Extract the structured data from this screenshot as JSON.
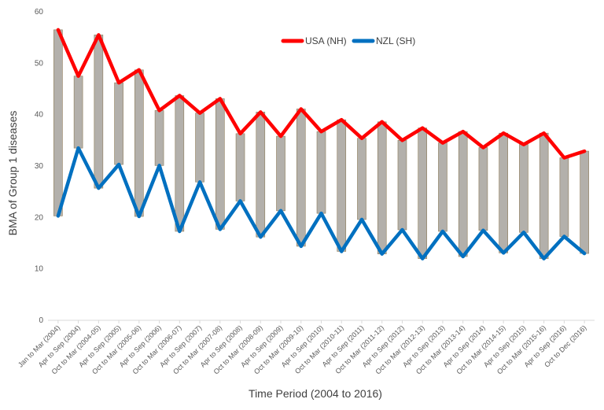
{
  "chart_data": {
    "type": "line",
    "title": "",
    "xlabel": "Time Period  (2004 to 2016)",
    "ylabel": "BMA of Group 1 diseases",
    "ylim": [
      0,
      60
    ],
    "yticks": [
      0,
      10,
      20,
      30,
      40,
      50,
      60
    ],
    "grid": false,
    "legend_position": "top-right",
    "categories": [
      "Jan to Mar (2004)",
      "Apr to Sep (2004)",
      "Oct to Mar (2004-05)",
      "Apr to Sep (2005)",
      "Oct to Mar (2005-06)",
      "Apr to Sep (2006)",
      "Oct to Mar (2006-07)",
      "Apr to Sep (2007)",
      "Oct to Mar (2007-08)",
      "Apr to Sep (2008)",
      "Oct to Mar (2008-09)",
      "Apr to Sep (2009)",
      "Oct to Mar (2009-10)",
      "Apr to Sep (2010)",
      "Oct to Mar (2010-11)",
      "Apr to Sep (2011)",
      "Oct to Mar (2011-12)",
      "Apr to Sep (2012)",
      "Oct to Mar (2012-13)",
      "Apr to Sep (2013)",
      "Oct to Mar (2013-14)",
      "Apr to Sep (2014)",
      "Oct to Mar (2014-15)",
      "Apr to Sep (2015)",
      "Oct to Mar (2015-16)",
      "Apr to Sep (2016)",
      "Oct to Dec (2016)"
    ],
    "series": [
      {
        "name": "USA (NH)",
        "color": "#ff0000",
        "values": [
          56.5,
          47.5,
          55.5,
          46.2,
          48.7,
          40.8,
          43.7,
          40.3,
          43.1,
          36.3,
          40.5,
          35.8,
          41.1,
          36.7,
          39.0,
          35.4,
          38.6,
          35.0,
          37.4,
          34.5,
          36.7,
          33.6,
          36.4,
          34.2,
          36.4,
          31.6,
          32.9
        ]
      },
      {
        "name": "NZL (SH)",
        "color": "#0070c0",
        "values": [
          20.3,
          33.5,
          25.7,
          30.3,
          20.2,
          30.1,
          17.3,
          26.9,
          17.7,
          23.2,
          16.2,
          21.3,
          14.4,
          20.8,
          13.4,
          19.6,
          12.9,
          17.6,
          12.0,
          17.3,
          12.4,
          17.5,
          13.1,
          17.1,
          12.0,
          16.3,
          13.0
        ]
      }
    ],
    "range_bar_color": "#b3b0ab"
  }
}
